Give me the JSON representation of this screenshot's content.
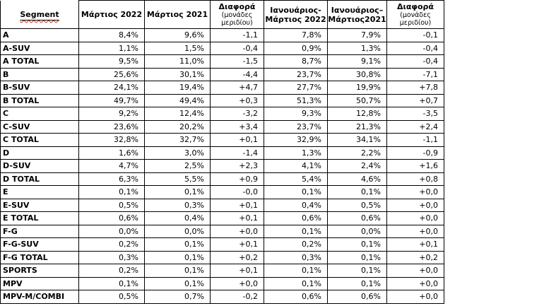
{
  "accent_colors": {
    "border": "#000000",
    "text": "#000000",
    "spellcheck_underline": "#d83a2f"
  },
  "table": {
    "columns": [
      {
        "label": "Segment"
      },
      {
        "label": "Μάρτιος 2022"
      },
      {
        "label": "Μάρτιος 2021"
      },
      {
        "label": "Διαφορά",
        "sublabel": "(μονάδες μεριδίου)"
      },
      {
        "label": "Ιανουάριος-",
        "label2": "Μάρτιος 2022"
      },
      {
        "label": "Ιανουάριος–",
        "label2": "Μάρτιος2021"
      },
      {
        "label": "Διαφορά",
        "sublabel": "(μονάδες μεριδίου)"
      }
    ],
    "rows": [
      {
        "segment": "A",
        "values": [
          "8,4%",
          "9,6%",
          "-1,1",
          "7,8%",
          "7,9%",
          "-0,1"
        ]
      },
      {
        "segment": "A-SUV",
        "values": [
          "1,1%",
          "1,5%",
          "-0,4",
          "0,9%",
          "1,3%",
          "-0,4"
        ]
      },
      {
        "segment": "A TOTAL",
        "values": [
          "9,5%",
          "11,0%",
          "-1,5",
          "8,7%",
          "9,1%",
          "-0,4"
        ]
      },
      {
        "segment": "B",
        "values": [
          "25,6%",
          "30,1%",
          "-4,4",
          "23,7%",
          "30,8%",
          "-7,1"
        ]
      },
      {
        "segment": "B-SUV",
        "values": [
          "24,1%",
          "19,4%",
          "+4,7",
          "27,7%",
          "19,9%",
          "+7,8"
        ]
      },
      {
        "segment": "B TOTAL",
        "values": [
          "49,7%",
          "49,4%",
          "+0,3",
          "51,3%",
          "50,7%",
          "+0,7"
        ]
      },
      {
        "segment": "C",
        "values": [
          "9,2%",
          "12,4%",
          "-3,2",
          "9,3%",
          "12,8%",
          "-3,5"
        ]
      },
      {
        "segment": "C-SUV",
        "values": [
          "23,6%",
          "20,2%",
          "+3,4",
          "23,7%",
          "21,3%",
          "+2,4"
        ]
      },
      {
        "segment": "C TOTAL",
        "values": [
          "32,8%",
          "32,7%",
          "+0,1",
          "32,9%",
          "34,1%",
          "-1,1"
        ]
      },
      {
        "segment": "D",
        "values": [
          "1,6%",
          "3,0%",
          "-1,4",
          "1,3%",
          "2,2%",
          "-0,9"
        ]
      },
      {
        "segment": "D-SUV",
        "values": [
          "4,7%",
          "2,5%",
          "+2,3",
          "4,1%",
          "2,4%",
          "+1,6"
        ]
      },
      {
        "segment": "D TOTAL",
        "values": [
          "6,3%",
          "5,5%",
          "+0,9",
          "5,4%",
          "4,6%",
          "+0,8"
        ]
      },
      {
        "segment": "E",
        "values": [
          "0,1%",
          "0,1%",
          "-0,0",
          "0,1%",
          "0,1%",
          "+0,0"
        ]
      },
      {
        "segment": "E-SUV",
        "values": [
          "0,5%",
          "0,3%",
          "+0,1",
          "0,4%",
          "0,5%",
          "+0,0"
        ]
      },
      {
        "segment": "E TOTAL",
        "values": [
          "0,6%",
          "0,4%",
          "+0,1",
          "0,6%",
          "0,6%",
          "+0,0"
        ]
      },
      {
        "segment": "F-G",
        "values": [
          "0,0%",
          "0,0%",
          "+0,0",
          "0,1%",
          "0,0%",
          "+0,0"
        ]
      },
      {
        "segment": "F-G-SUV",
        "values": [
          "0,2%",
          "0,1%",
          "+0,1",
          "0,2%",
          "0,1%",
          "+0,1"
        ]
      },
      {
        "segment": "F-G TOTAL",
        "values": [
          "0,3%",
          "0,1%",
          "+0,2",
          "0,3%",
          "0,1%",
          "+0,2"
        ]
      },
      {
        "segment": "SPORTS",
        "values": [
          "0,2%",
          "0,1%",
          "+0,1",
          "0,1%",
          "0,1%",
          "+0,0"
        ]
      },
      {
        "segment": "MPV",
        "values": [
          "0,1%",
          "0,1%",
          "+0,0",
          "0,1%",
          "0,1%",
          "+0,0"
        ]
      },
      {
        "segment": "MPV-M/COMBI",
        "values": [
          "0,5%",
          "0,7%",
          "-0,2",
          "0,6%",
          "0,6%",
          "+0,0"
        ]
      }
    ]
  }
}
